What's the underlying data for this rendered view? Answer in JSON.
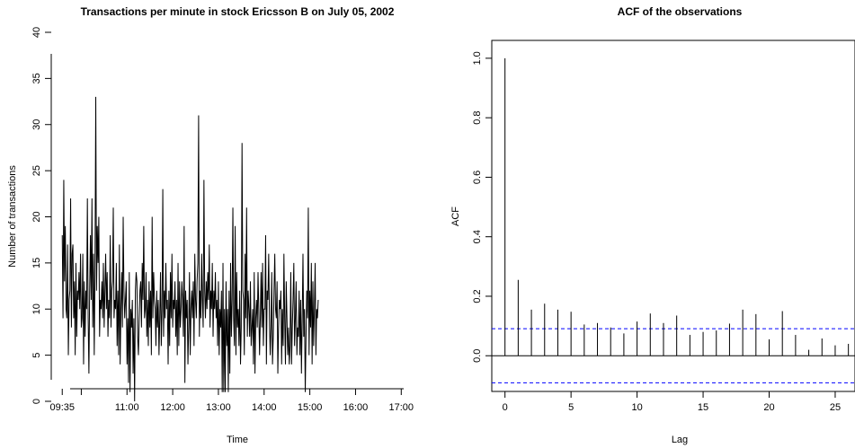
{
  "chart_data": [
    {
      "type": "line",
      "title": "Transactions per minute in stock Ericsson B on July 05, 2002",
      "xlabel": "Time",
      "ylabel": "Number of transactions",
      "xlim": [
        "09:30",
        "17:15"
      ],
      "ylim": [
        0,
        40
      ],
      "x_tick_labels": [
        "09:35",
        "11:00",
        "12:00",
        "13:00",
        "14:00",
        "15:00",
        "16:00",
        "17:00"
      ],
      "y_tick_labels": [
        "0",
        "5",
        "10",
        "15",
        "20",
        "25",
        "30",
        "35",
        "40"
      ],
      "grid": false,
      "legend": "none",
      "x_start": "09:35",
      "x_step": "1 minute",
      "series": [
        {
          "color": "#000000",
          "values": [
            18,
            9,
            24,
            13,
            19,
            10,
            9,
            17,
            5,
            11,
            12,
            22,
            8,
            16,
            17,
            9,
            13,
            5,
            15,
            7,
            12,
            11,
            14,
            10,
            16,
            8,
            9,
            16,
            4,
            13,
            7,
            12,
            10,
            22,
            9,
            3,
            12,
            18,
            11,
            22,
            8,
            16,
            5,
            14,
            33,
            12,
            19,
            15,
            20,
            7,
            11,
            10,
            13,
            9,
            15,
            8,
            12,
            16,
            10,
            14,
            7,
            11,
            9,
            18,
            8,
            12,
            13,
            21,
            9,
            11,
            10,
            15,
            6,
            12,
            5,
            17,
            4,
            10,
            14,
            8,
            20,
            12,
            9,
            11,
            13,
            4,
            9,
            2,
            14,
            1,
            10,
            8,
            11,
            3,
            9,
            0,
            12,
            14,
            13,
            7,
            5,
            9,
            12,
            13,
            8,
            15,
            11,
            19,
            9,
            10,
            14,
            7,
            11,
            6,
            13,
            8,
            12,
            5,
            20,
            9,
            14,
            11,
            10,
            6,
            12,
            8,
            11,
            5,
            9,
            14,
            6,
            10,
            23,
            7,
            12,
            9,
            15,
            10,
            11,
            4,
            12,
            6,
            14,
            9,
            16,
            8,
            11,
            10,
            13,
            7,
            11,
            5,
            15,
            6,
            13,
            8,
            10,
            13,
            11,
            7,
            19,
            2,
            12,
            9,
            11,
            4,
            8,
            14,
            5,
            10,
            12,
            9,
            13,
            6,
            16,
            11,
            9,
            13,
            15,
            31,
            7,
            12,
            9,
            16,
            11,
            8,
            24,
            12,
            9,
            13,
            10,
            14,
            11,
            17,
            8,
            12,
            10,
            15,
            7,
            12,
            10,
            14,
            9,
            11,
            6,
            13,
            5,
            10,
            8,
            12,
            1,
            15,
            1,
            10,
            1,
            13,
            6,
            10,
            1,
            12,
            3,
            15,
            7,
            11,
            21,
            9,
            6,
            19,
            5,
            14,
            8,
            10,
            6,
            12,
            4,
            8,
            28,
            12,
            11,
            5,
            16,
            9,
            21,
            7,
            12,
            10,
            7,
            13,
            6,
            8,
            10,
            4,
            14,
            3,
            9,
            11,
            8,
            14,
            10,
            5,
            9,
            14,
            8,
            15,
            6,
            10,
            10,
            18,
            4,
            12,
            11,
            16,
            9,
            5,
            8,
            14,
            4,
            7,
            12,
            16,
            10,
            9,
            13,
            3,
            8,
            11,
            10,
            12,
            4,
            10,
            6,
            16,
            9,
            4,
            13,
            9,
            5,
            8,
            4,
            6,
            14,
            4,
            8,
            11,
            15,
            6,
            9,
            13,
            5,
            8,
            7,
            12,
            5,
            11,
            3,
            9,
            16,
            7,
            10,
            1,
            7,
            12,
            9,
            21,
            5,
            12,
            8,
            15,
            4,
            13,
            6,
            10,
            15,
            5,
            10,
            9,
            11
          ]
        }
      ]
    },
    {
      "type": "bar",
      "title": "ACF of the observations",
      "xlabel": "Lag",
      "ylabel": "ACF",
      "xlim": [
        -1,
        26.5
      ],
      "ylim": [
        -0.12,
        1.06
      ],
      "x_tick_labels": [
        "0",
        "5",
        "10",
        "15",
        "20",
        "25"
      ],
      "y_tick_labels": [
        "0.0",
        "0.2",
        "0.4",
        "0.6",
        "0.8",
        "1.0"
      ],
      "grid": false,
      "legend": "none",
      "zero_line": 0,
      "confidence_bounds": [
        0.091,
        -0.091
      ],
      "confidence_color": "#0000ff",
      "x": [
        0,
        1,
        2,
        3,
        4,
        5,
        6,
        7,
        8,
        9,
        10,
        11,
        12,
        13,
        14,
        15,
        16,
        17,
        18,
        19,
        20,
        21,
        22,
        23,
        24,
        25,
        26
      ],
      "values": [
        1.0,
        0.255,
        0.155,
        0.175,
        0.155,
        0.148,
        0.105,
        0.11,
        0.095,
        0.075,
        0.115,
        0.142,
        0.11,
        0.135,
        0.07,
        0.08,
        0.085,
        0.108,
        0.155,
        0.14,
        0.055,
        0.15,
        0.07,
        0.02,
        0.058,
        0.035,
        0.04
      ]
    }
  ]
}
